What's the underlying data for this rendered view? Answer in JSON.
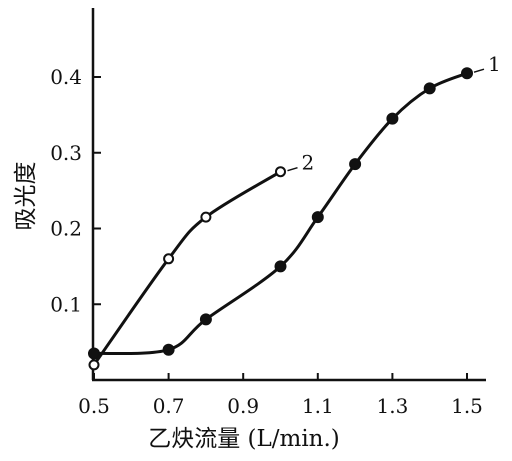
{
  "chart_data": {
    "type": "line",
    "title": "",
    "xlabel": "乙炔流量 (L/min.)",
    "ylabel": "吸光度",
    "xlim": [
      0.5,
      1.5
    ],
    "ylim": [
      0,
      0.4
    ],
    "x_ticks": [
      "0.5",
      "0.7",
      "0.9",
      "1.1",
      "1.3",
      "1.5"
    ],
    "y_ticks": [
      "0.1",
      "0.2",
      "0.3",
      "0.4"
    ],
    "grid": false,
    "series": [
      {
        "name": "1",
        "marker": "filled-circle",
        "color": "#111111",
        "x": [
          0.5,
          0.7,
          0.8,
          1.0,
          1.1,
          1.2,
          1.3,
          1.4,
          1.5
        ],
        "y": [
          0.035,
          0.04,
          0.08,
          0.15,
          0.215,
          0.285,
          0.345,
          0.385,
          0.405
        ]
      },
      {
        "name": "2",
        "marker": "open-circle",
        "color": "#111111",
        "x": [
          0.5,
          0.7,
          0.8,
          1.0
        ],
        "y": [
          0.02,
          0.16,
          0.215,
          0.275
        ]
      }
    ]
  }
}
